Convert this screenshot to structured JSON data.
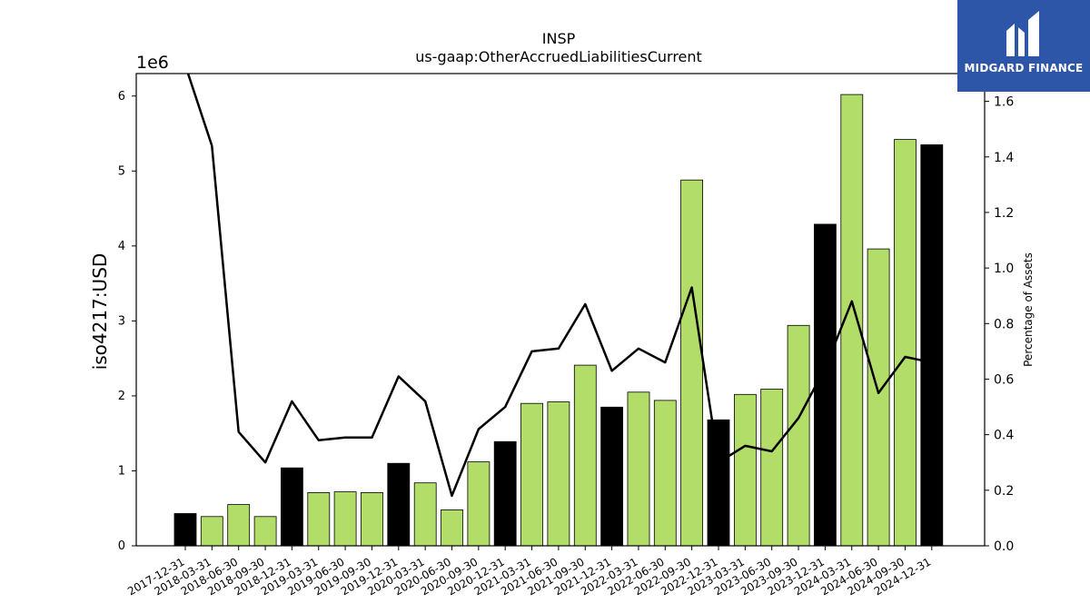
{
  "chart_data": {
    "type": "bar",
    "title": "INSP",
    "subtitle": "us-gaap:OtherAccruedLiabilitiesCurrent",
    "ylabel": "iso4217:USD",
    "y_multiplier_label": "1e6",
    "y2label": "Percentage of Assets",
    "ylim": [
      0,
      6.3
    ],
    "y2lim": [
      0,
      1.7
    ],
    "yticks": [
      0,
      1,
      2,
      3,
      4,
      5,
      6
    ],
    "y2ticks": [
      "0.0",
      "0.2",
      "0.4",
      "0.6",
      "0.8",
      "1.0",
      "1.2",
      "1.4",
      "1.6"
    ],
    "categories": [
      "2017-12-31",
      "2018-03-31",
      "2018-06-30",
      "2018-09-30",
      "2018-12-31",
      "2019-03-31",
      "2019-06-30",
      "2019-09-30",
      "2019-12-31",
      "2020-03-31",
      "2020-06-30",
      "2020-09-30",
      "2020-12-31",
      "2021-03-31",
      "2021-06-30",
      "2021-09-30",
      "2021-12-31",
      "2022-03-31",
      "2022-06-30",
      "2022-09-30",
      "2022-12-31",
      "2023-03-31",
      "2023-06-30",
      "2023-09-30",
      "2023-12-31",
      "2024-03-31",
      "2024-06-30",
      "2024-09-30",
      "2024-12-31"
    ],
    "series": [
      {
        "name": "",
        "type": "bar",
        "values": [
          0.43,
          0.39,
          0.55,
          0.39,
          1.04,
          0.71,
          0.72,
          0.71,
          1.1,
          0.84,
          0.48,
          1.12,
          1.39,
          1.9,
          1.92,
          2.41,
          1.85,
          2.05,
          1.94,
          4.88,
          1.68,
          2.02,
          2.09,
          2.94,
          4.29,
          6.02,
          3.96,
          5.42,
          5.35
        ],
        "colors": [
          "#000000",
          "#b3dd69",
          "#b3dd69",
          "#b3dd69",
          "#000000",
          "#b3dd69",
          "#b3dd69",
          "#b3dd69",
          "#000000",
          "#b3dd69",
          "#b3dd69",
          "#b3dd69",
          "#000000",
          "#b3dd69",
          "#b3dd69",
          "#b3dd69",
          "#000000",
          "#b3dd69",
          "#b3dd69",
          "#b3dd69",
          "#000000",
          "#b3dd69",
          "#b3dd69",
          "#b3dd69",
          "#000000",
          "#b3dd69",
          "#b3dd69",
          "#b3dd69",
          "#000000"
        ]
      },
      {
        "name": "",
        "type": "line",
        "axis": "right",
        "color": "#000000",
        "values": [
          1.73,
          1.44,
          0.41,
          0.3,
          0.52,
          0.38,
          0.39,
          0.39,
          0.61,
          0.52,
          0.18,
          0.42,
          0.5,
          0.7,
          0.71,
          0.87,
          0.63,
          0.71,
          0.66,
          0.93,
          0.3,
          0.36,
          0.34,
          0.46,
          0.64,
          0.88,
          0.55,
          0.68,
          0.66
        ]
      }
    ],
    "grid": false,
    "legend": "none"
  },
  "logo": {
    "text": "MIDGARD FINANCE",
    "color": "#2e56a8"
  }
}
